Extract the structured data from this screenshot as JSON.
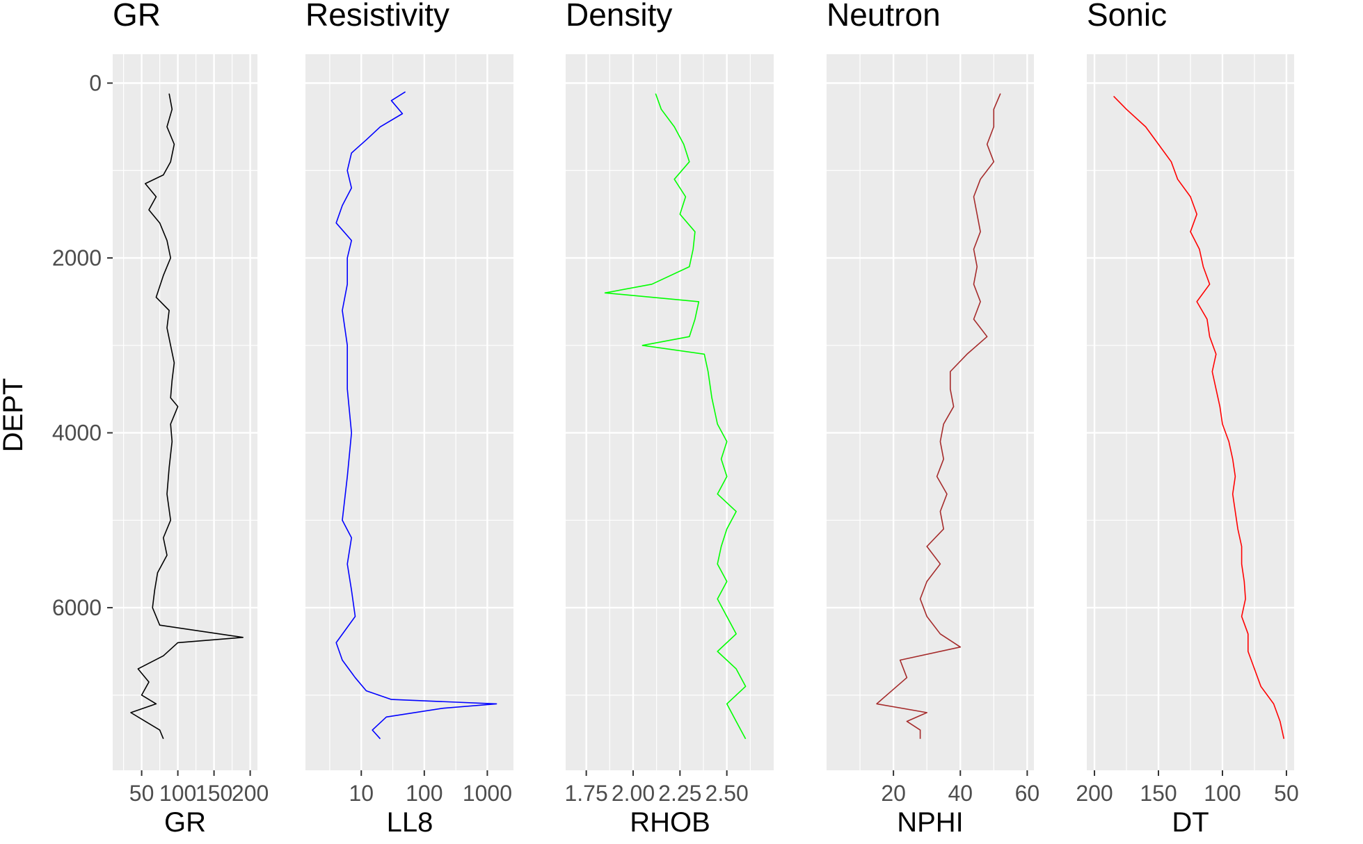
{
  "chart_data": {
    "type": "line",
    "layout": "well-log tracks (faceted panels, shared depth axis)",
    "shared_y": {
      "label": "DEPT",
      "ticks": [
        0,
        2000,
        4000,
        6000
      ],
      "tick_labels": [
        "0",
        "2000",
        "4000",
        "6000"
      ],
      "ylim": [
        7860,
        -330
      ],
      "reversed": true
    },
    "panel_background": "#EBEBEB",
    "grid": true,
    "panels": [
      {
        "key": "gr",
        "title": "GR",
        "xlabel": "GR",
        "color": "#000000",
        "scale": "linear",
        "xlim": [
          10,
          210
        ],
        "ticks": [
          50,
          100,
          150,
          200
        ],
        "tick_labels": [
          "50",
          "100",
          "150",
          "200"
        ],
        "series_depth": [
          120,
          300,
          500,
          700,
          900,
          1050,
          1150,
          1300,
          1450,
          1600,
          1800,
          2000,
          2200,
          2450,
          2600,
          2800,
          3000,
          3200,
          3400,
          3600,
          3700,
          3900,
          4100,
          4400,
          4700,
          5000,
          5200,
          5400,
          5600,
          5800,
          6000,
          6200,
          6340,
          6400,
          6550,
          6700,
          6850,
          7000,
          7100,
          7200,
          7300,
          7400,
          7500
        ],
        "series_value": [
          88,
          92,
          85,
          95,
          90,
          80,
          55,
          70,
          60,
          75,
          85,
          90,
          80,
          70,
          88,
          85,
          90,
          95,
          92,
          90,
          100,
          90,
          92,
          88,
          85,
          90,
          80,
          85,
          72,
          68,
          65,
          75,
          190,
          100,
          80,
          45,
          60,
          50,
          70,
          35,
          55,
          75,
          80
        ]
      },
      {
        "key": "res",
        "title": "Resistivity",
        "xlabel": "LL8",
        "color": "#0000FF",
        "scale": "log",
        "xlim": [
          1.3,
          2600
        ],
        "ticks": [
          10,
          100,
          1000
        ],
        "tick_labels": [
          "10",
          "100",
          "1000"
        ],
        "series_depth": [
          100,
          200,
          350,
          500,
          650,
          800,
          1000,
          1200,
          1400,
          1600,
          1800,
          2000,
          2300,
          2600,
          3000,
          3500,
          4000,
          4500,
          5000,
          5200,
          5500,
          5800,
          6100,
          6400,
          6600,
          6800,
          6950,
          7050,
          7100,
          7150,
          7250,
          7400,
          7500
        ],
        "series_value": [
          50,
          30,
          45,
          20,
          12,
          7,
          6,
          7,
          5,
          4,
          7,
          6,
          6,
          5,
          6,
          6,
          7,
          6,
          5,
          7,
          6,
          7,
          8,
          4,
          5,
          8,
          12,
          30,
          1400,
          200,
          25,
          15,
          20
        ]
      },
      {
        "key": "rhob",
        "title": "Density",
        "xlabel": "RHOB",
        "color": "#00FF00",
        "scale": "linear",
        "xlim": [
          1.64,
          2.75
        ],
        "ticks": [
          1.75,
          2.0,
          2.25,
          2.5
        ],
        "tick_labels": [
          "1.75",
          "2.00",
          "2.25",
          "2.50"
        ],
        "series_depth": [
          120,
          300,
          500,
          700,
          900,
          1100,
          1300,
          1500,
          1700,
          1900,
          2100,
          2300,
          2400,
          2500,
          2700,
          2900,
          3000,
          3100,
          3300,
          3600,
          3900,
          4100,
          4300,
          4500,
          4700,
          4900,
          5100,
          5300,
          5500,
          5700,
          5900,
          6100,
          6300,
          6500,
          6700,
          6900,
          7100,
          7300,
          7500
        ],
        "series_value": [
          2.12,
          2.15,
          2.22,
          2.27,
          2.3,
          2.22,
          2.28,
          2.25,
          2.33,
          2.32,
          2.3,
          2.1,
          1.85,
          2.35,
          2.33,
          2.3,
          2.05,
          2.38,
          2.4,
          2.42,
          2.45,
          2.5,
          2.47,
          2.5,
          2.45,
          2.55,
          2.5,
          2.47,
          2.45,
          2.5,
          2.45,
          2.5,
          2.55,
          2.45,
          2.55,
          2.6,
          2.5,
          2.55,
          2.6
        ]
      },
      {
        "key": "nphi",
        "title": "Neutron",
        "xlabel": "NPHI",
        "color": "#A52A2A",
        "scale": "linear",
        "xlim": [
          0,
          62
        ],
        "ticks": [
          20,
          40,
          60
        ],
        "tick_labels": [
          "20",
          "40",
          "60"
        ],
        "series_depth": [
          120,
          300,
          500,
          700,
          900,
          1100,
          1300,
          1500,
          1700,
          1900,
          2100,
          2300,
          2500,
          2700,
          2900,
          3100,
          3300,
          3500,
          3700,
          3900,
          4100,
          4300,
          4500,
          4700,
          4900,
          5100,
          5300,
          5500,
          5700,
          5900,
          6100,
          6300,
          6450,
          6600,
          6800,
          7000,
          7100,
          7200,
          7300,
          7400,
          7500
        ],
        "series_value": [
          52,
          50,
          50,
          48,
          50,
          46,
          44,
          45,
          46,
          44,
          45,
          44,
          46,
          44,
          48,
          42,
          37,
          37,
          38,
          35,
          34,
          35,
          33,
          36,
          34,
          35,
          30,
          34,
          30,
          28,
          30,
          34,
          40,
          22,
          24,
          18,
          15,
          30,
          24,
          28,
          28
        ]
      },
      {
        "key": "dt",
        "title": "Sonic",
        "xlabel": "DT",
        "color": "#FF0000",
        "scale": "reversed",
        "xlim": [
          206,
          44
        ],
        "ticks": [
          200,
          150,
          100,
          50
        ],
        "tick_labels": [
          "200",
          "150",
          "100",
          "50"
        ],
        "series_depth": [
          150,
          300,
          500,
          700,
          900,
          1100,
          1300,
          1500,
          1700,
          1900,
          2100,
          2300,
          2500,
          2700,
          2900,
          3100,
          3300,
          3500,
          3700,
          3900,
          4100,
          4300,
          4500,
          4700,
          4900,
          5100,
          5300,
          5500,
          5700,
          5900,
          6100,
          6300,
          6500,
          6700,
          6900,
          7100,
          7300,
          7500
        ],
        "series_value": [
          185,
          175,
          160,
          150,
          140,
          135,
          125,
          120,
          125,
          118,
          115,
          110,
          120,
          112,
          110,
          105,
          108,
          105,
          102,
          100,
          95,
          92,
          90,
          92,
          90,
          88,
          85,
          85,
          83,
          82,
          85,
          80,
          80,
          75,
          70,
          60,
          55,
          52
        ]
      }
    ]
  }
}
